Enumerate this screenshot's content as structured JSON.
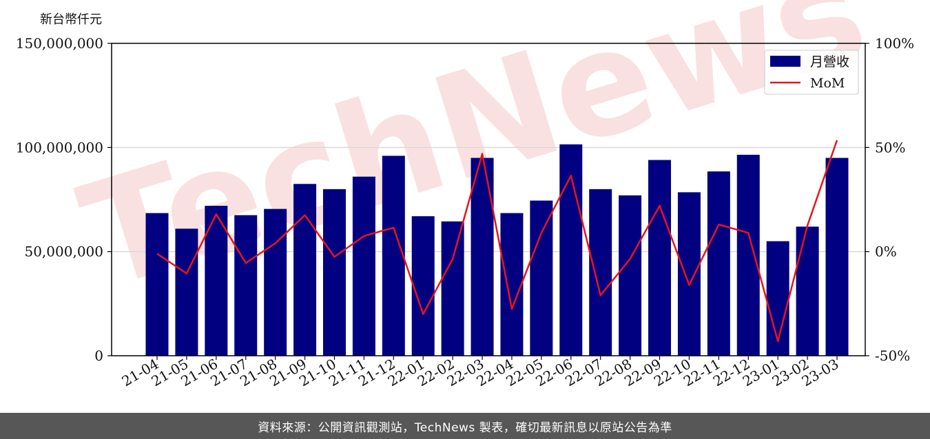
{
  "unit_label": "新台幣仟元",
  "footer_text": "資料來源：公開資訊觀測站，TechNews 製表，確切最新訊息以原站公告為準",
  "watermark": "TechNews",
  "colors": {
    "bar": "#000080",
    "line": "#e8141c",
    "grid": "#d9d9d9",
    "watermark": "#f4c9c9"
  },
  "chart_data": {
    "type": "bar+line",
    "categories": [
      "21-04",
      "21-05",
      "21-06",
      "21-07",
      "21-08",
      "21-09",
      "21-10",
      "21-11",
      "21-12",
      "22-01",
      "22-02",
      "22-03",
      "22-04",
      "22-05",
      "22-06",
      "22-07",
      "22-08",
      "22-09",
      "22-10",
      "22-11",
      "22-12",
      "23-01",
      "23-02",
      "23-03"
    ],
    "series": [
      {
        "name": "月營收",
        "type": "bar",
        "axis": "left",
        "values": [
          68500000,
          61000000,
          72000000,
          67500000,
          70500000,
          82500000,
          80000000,
          86000000,
          96000000,
          67000000,
          64500000,
          95000000,
          68500000,
          74500000,
          101500000,
          80000000,
          77000000,
          94000000,
          78500000,
          88500000,
          96500000,
          55000000,
          62000000,
          95000000
        ]
      },
      {
        "name": "MoM",
        "type": "line",
        "axis": "right",
        "values": [
          -1,
          -10.5,
          18,
          -5.5,
          4,
          17.5,
          -2.5,
          7.5,
          11.5,
          -30,
          -3.5,
          47,
          -27.5,
          9,
          36.5,
          -21,
          -3.5,
          22,
          -16,
          13,
          9,
          -43,
          12.5,
          53.5
        ]
      }
    ],
    "y_left": {
      "lim": [
        0,
        150000000
      ],
      "ticks": [
        "0",
        "50,000,000",
        "100,000,000",
        "150,000,000"
      ],
      "tick_values": [
        0,
        50000000,
        100000000,
        150000000
      ]
    },
    "y_right": {
      "lim": [
        -50,
        100
      ],
      "ticks": [
        "-50%",
        "0%",
        "50%",
        "100%"
      ],
      "tick_values": [
        -50,
        0,
        50,
        100
      ]
    },
    "grid": true,
    "legend": {
      "position": "top-right",
      "entries": [
        "月營收",
        "MoM"
      ]
    }
  }
}
